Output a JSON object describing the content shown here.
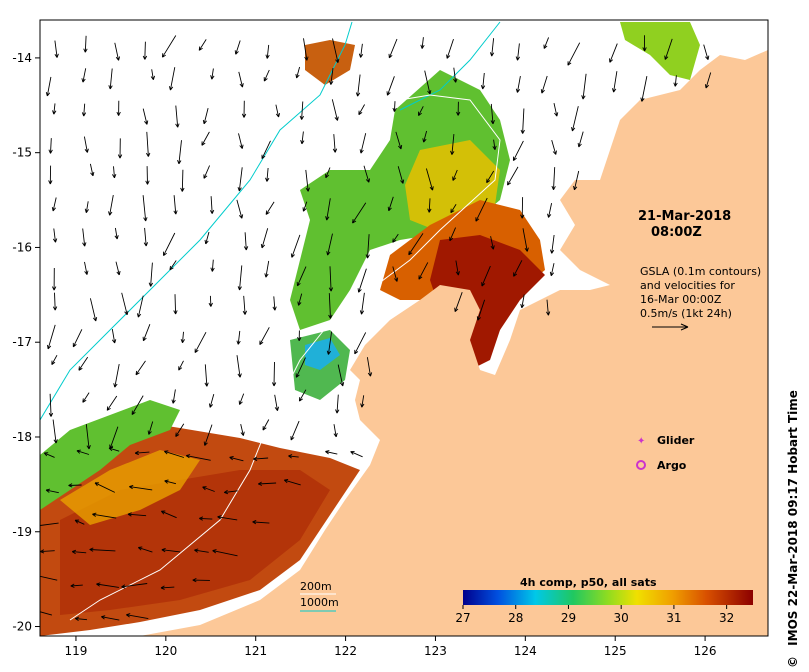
{
  "map": {
    "date": "21-Mar-2018",
    "time": "08:00Z",
    "gsla_lines": [
      "GSLA (0.1m contours)",
      "and velocities for",
      "16-Mar 00:00Z",
      "0.5m/s (1kt 24h)"
    ],
    "legend": {
      "glider": "Glider",
      "argo": "Argo",
      "glider_color": "#cc33cc",
      "argo_color": "#cc33cc"
    },
    "depth_contours": {
      "c200": "200m",
      "c1000": "1000m",
      "c200_color": "#ffffff",
      "c1000_color": "#00cccc"
    },
    "colorbar": {
      "title": "4h comp, p50, all sats",
      "ticks": [
        "27",
        "28",
        "29",
        "30",
        "31",
        "32"
      ],
      "min": 27,
      "max": 32.5
    },
    "credit": "IMOS 22-Mar-2018 09:17 Hobart Time",
    "copyright_symbol": "©",
    "land_color": "#fcc898",
    "x_ticks": [
      "119",
      "120",
      "121",
      "122",
      "123",
      "124",
      "125",
      "126"
    ],
    "y_ticks": [
      "-14",
      "-15",
      "-16",
      "-17",
      "-18",
      "-19",
      "-20"
    ],
    "lon_range": [
      118.6,
      126.7
    ],
    "lat_range": [
      -20.1,
      -13.6
    ]
  }
}
